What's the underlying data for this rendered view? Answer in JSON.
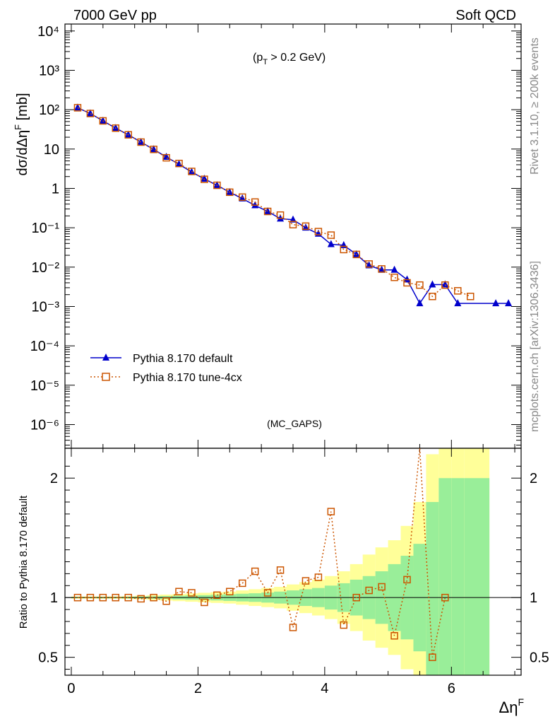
{
  "header": {
    "left": "7000 GeV pp",
    "right": "Soft QCD"
  },
  "side_text": {
    "rivet": "Rivet 3.1.10, ≥ 200k events",
    "mcplots": "mcplots.cern.ch [arXiv:1306.3436]"
  },
  "chart_data": [
    {
      "type": "line",
      "title": "",
      "annotation": {
        "main": "(p",
        "sub": "T",
        "rest": " > 0.2 GeV)"
      },
      "watermark": "(MC_GAPS)",
      "ylabel": {
        "main": "dσ/dΔη",
        "sup": "F",
        "unit": " [mb]"
      },
      "xlabel": {
        "main": "Δη",
        "sup": "F"
      },
      "xlim": [
        -0.1,
        7.1
      ],
      "ylim": [
        2.5e-07,
        15000
      ],
      "yscale": "log",
      "x_ticks": [
        "0",
        "2",
        "4",
        "6"
      ],
      "y_ticks": [
        "10⁻⁶",
        "10⁻⁵",
        "10⁻⁴",
        "10⁻³",
        "10⁻²",
        "10⁻¹",
        "1",
        "10",
        "10²",
        "10³",
        "10⁴"
      ],
      "legend": {
        "position": "bottom-left"
      },
      "series": [
        {
          "name": "Pythia 8.170 default",
          "color": "#0000cc",
          "marker": "triangle",
          "style": "solid",
          "x": [
            0.1,
            0.3,
            0.5,
            0.7,
            0.9,
            1.1,
            1.3,
            1.5,
            1.7,
            1.9,
            2.1,
            2.3,
            2.5,
            2.7,
            2.9,
            3.1,
            3.3,
            3.5,
            3.7,
            3.9,
            4.1,
            4.3,
            4.5,
            4.7,
            4.9,
            5.1,
            5.3,
            5.5,
            5.7,
            5.9,
            6.1,
            6.7,
            6.9
          ],
          "y": [
            112,
            80,
            52,
            34,
            23,
            15,
            9.8,
            6.3,
            4.1,
            2.6,
            1.75,
            1.2,
            0.8,
            0.55,
            0.37,
            0.26,
            0.17,
            0.16,
            0.1,
            0.07,
            0.038,
            0.036,
            0.021,
            0.011,
            0.0085,
            0.0085,
            0.0048,
            0.0012,
            0.0036,
            0.0036,
            0.0012,
            0.0012,
            0.0012
          ]
        },
        {
          "name": "Pythia 8.170 tune-4cx",
          "color": "#cc5500",
          "marker": "open-square",
          "style": "dotted",
          "x": [
            0.1,
            0.3,
            0.5,
            0.7,
            0.9,
            1.1,
            1.3,
            1.5,
            1.7,
            1.9,
            2.1,
            2.3,
            2.5,
            2.7,
            2.9,
            3.1,
            3.3,
            3.5,
            3.7,
            3.9,
            4.1,
            4.3,
            4.5,
            4.7,
            4.9,
            5.1,
            5.3,
            5.5,
            5.7,
            5.9,
            6.1,
            6.3
          ],
          "y": [
            112,
            80,
            52,
            34,
            23,
            15,
            9.8,
            6.0,
            4.3,
            2.7,
            1.7,
            1.2,
            0.8,
            0.6,
            0.45,
            0.26,
            0.21,
            0.12,
            0.11,
            0.08,
            0.065,
            0.028,
            0.021,
            0.012,
            0.009,
            0.0055,
            0.004,
            0.0035,
            0.0018,
            0.0035,
            0.0025,
            0.0018
          ]
        }
      ]
    },
    {
      "type": "line",
      "title": "",
      "ylabel": "Ratio to Pythia 8.170 default",
      "xlim": [
        -0.1,
        7.1
      ],
      "ylim": [
        0.35,
        2.25
      ],
      "yscale": "linear",
      "y_ticks": [
        "0.5",
        "1",
        "2"
      ],
      "bands": {
        "yellow_color": "#ffff99",
        "green_color": "#99ee99",
        "edges": [
          -0.1,
          0.0,
          0.2,
          0.4,
          0.6,
          0.8,
          1.0,
          1.2,
          1.4,
          1.6,
          1.8,
          2.0,
          2.2,
          2.4,
          2.6,
          2.8,
          3.0,
          3.2,
          3.4,
          3.6,
          3.8,
          4.0,
          4.2,
          4.4,
          4.6,
          4.8,
          5.0,
          5.2,
          5.4,
          5.6,
          5.8,
          6.0,
          6.2,
          6.6,
          7.0
        ],
        "yellow_half": [
          0,
          0.01,
          0.01,
          0.01,
          0.01,
          0.012,
          0.015,
          0.02,
          0.025,
          0.03,
          0.035,
          0.04,
          0.045,
          0.05,
          0.06,
          0.07,
          0.08,
          0.09,
          0.11,
          0.13,
          0.15,
          0.18,
          0.22,
          0.28,
          0.36,
          0.42,
          0.48,
          0.6,
          0.8,
          1.2,
          1.3,
          1.3,
          1.3,
          0,
          1.3
        ],
        "green_half": [
          0,
          0.005,
          0.005,
          0.006,
          0.006,
          0.007,
          0.008,
          0.01,
          0.012,
          0.015,
          0.018,
          0.02,
          0.024,
          0.028,
          0.032,
          0.036,
          0.042,
          0.05,
          0.06,
          0.07,
          0.08,
          0.1,
          0.12,
          0.15,
          0.18,
          0.22,
          0.28,
          0.35,
          0.45,
          0.8,
          1.0,
          1.0,
          1.0,
          0,
          1.0
        ]
      },
      "series": [
        {
          "name": "Pythia 8.170 tune-4cx",
          "color": "#cc5500",
          "x": [
            0.1,
            0.3,
            0.5,
            0.7,
            0.9,
            1.1,
            1.3,
            1.5,
            1.7,
            1.9,
            2.1,
            2.3,
            2.5,
            2.7,
            2.9,
            3.1,
            3.3,
            3.5,
            3.7,
            3.9,
            4.1,
            4.3,
            4.5,
            4.7,
            4.9,
            5.1,
            5.3,
            5.5,
            5.7,
            5.9
          ],
          "y": [
            1.0,
            1.0,
            1.0,
            1.0,
            1.0,
            0.99,
            1.0,
            0.97,
            1.05,
            1.04,
            0.96,
            1.02,
            1.05,
            1.12,
            1.22,
            1.04,
            1.23,
            0.75,
            1.14,
            1.17,
            1.72,
            0.77,
            1.0,
            1.06,
            1.09,
            0.68,
            1.15,
            2.3,
            0.5,
            1.0
          ]
        }
      ]
    }
  ]
}
